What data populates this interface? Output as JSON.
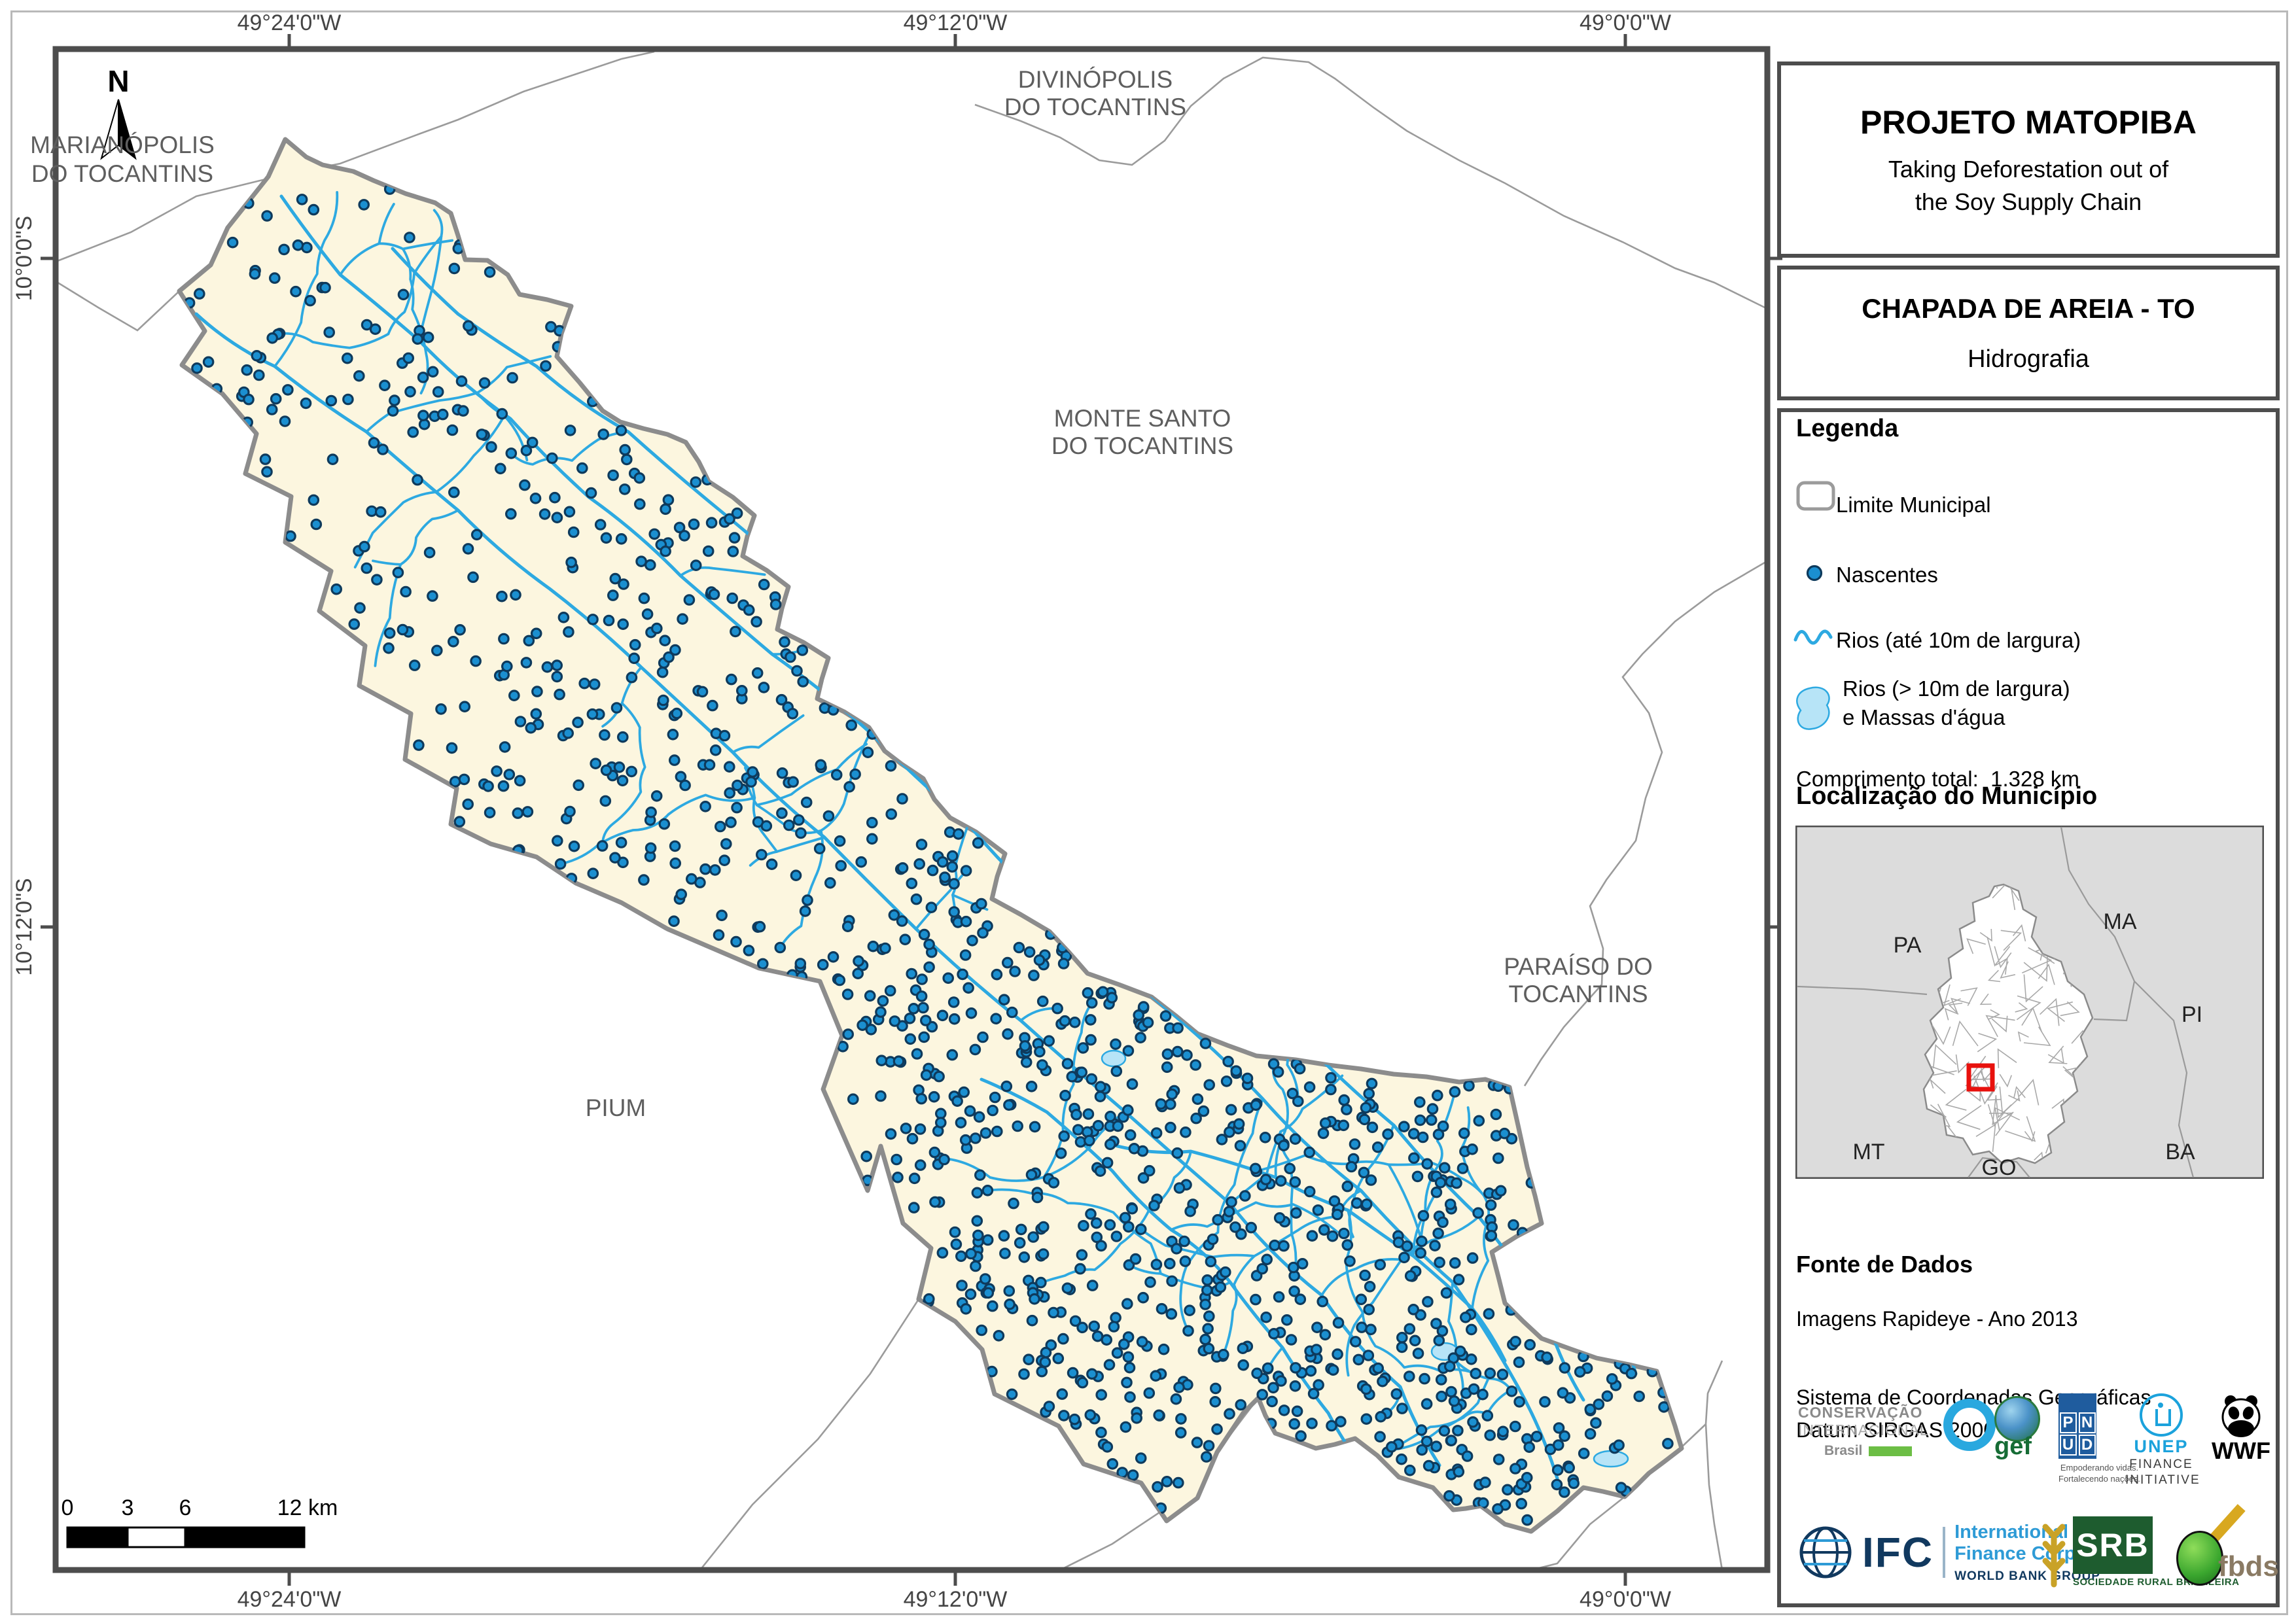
{
  "title_block": {
    "title": "PROJETO MATOPIBA",
    "subtitle_line1": "Taking Deforestation out of",
    "subtitle_line2": "the Soy Supply Chain"
  },
  "map_id_block": {
    "municipality": "CHAPADA DE AREIA - TO",
    "theme": "Hidrografia"
  },
  "legend": {
    "header": "Legenda",
    "item_limite": "Limite Municipal",
    "item_nascentes": "Nascentes",
    "item_rios": "Rios (até 10m de largura)",
    "item_rios_largos_1": "Rios (> 10m de largura)",
    "item_rios_largos_2": "e Massas d'água",
    "total_label": "Comprimento total:",
    "total_value": "1.328 km"
  },
  "location": {
    "header": "Localização do Município",
    "states": [
      "PA",
      "MA",
      "PI",
      "MT",
      "BA",
      "GO"
    ]
  },
  "source": {
    "header": "Fonte de Dados",
    "line1": "Imagens Rapideye - Ano 2013",
    "line2": "Sistema de Coordenadas Geográficas",
    "line3": "Datum SIRGAS 2000"
  },
  "logos": {
    "ci_line1": "CONSERVAÇÃO",
    "ci_line2": "INTERNACIONAL",
    "ci_brasil": "Brasil",
    "gef": "gef",
    "pnud_p": "P",
    "pnud_n": "N",
    "pnud_u": "U",
    "pnud_d": "D",
    "pnud_cap1": "Empoderando vidas.",
    "pnud_cap2": "Fortalecendo nações.",
    "unep": "UNEP",
    "unep_sub1": "FINANCE",
    "unep_sub2": "INITIATIVE",
    "wwf": "WWF",
    "ifc": "IFC",
    "ifc_line1": "International",
    "ifc_line2": "Finance Corporation",
    "ifc_wbg": "WORLD BANK GROUP",
    "srb": "SRB",
    "srb_sub": "SOCIEDADE RURAL BRASILEIRA",
    "fbds": "fbds"
  },
  "map": {
    "north": "N",
    "coords_top": [
      "49°24'0\"W",
      "49°12'0\"W",
      "49°0'0\"W"
    ],
    "coords_left": [
      "10°0'0\"S",
      "10°12'0\"S"
    ],
    "labels": {
      "marianopolis": [
        "MARIANÓPOLIS",
        "DO TOCANTINS"
      ],
      "divinopolis": [
        "DIVINÓPOLIS",
        "DO TOCANTINS"
      ],
      "montesanto": [
        "MONTE SANTO",
        "DO TOCANTINS"
      ],
      "paraiso": [
        "PARAÍSO DO",
        "TOCANTINS"
      ],
      "pium": "PIUM"
    },
    "scalebar": {
      "t0": "0",
      "t3": "3",
      "t6": "6",
      "t12": "12 km"
    }
  },
  "colors": {
    "river": "#2da9e1",
    "nascente_fill": "#1b8fd0",
    "nascente_ring": "#0e3a5c",
    "municipality_fill": "#fcf6df",
    "municipality_border": "#8c8c8c",
    "water_mass": "#b7e4f7",
    "frame": "#4d4d4d",
    "locator_square": "#e8110d"
  }
}
